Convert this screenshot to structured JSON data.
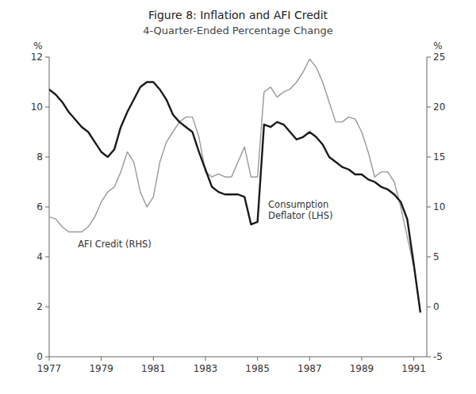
{
  "chart_data": {
    "type": "line",
    "title": "Figure 8: Inflation and AFI Credit",
    "subtitle": "4-Quarter-Ended Percentage Change",
    "ylabel": "%",
    "y2label": "%",
    "annotations": [
      "AFI Credit (RHS)",
      "Consumption\nDeflator (LHS)"
    ],
    "grid": false,
    "xlim": [
      1977.0,
      1991.5
    ],
    "xticks": [
      1977,
      1979,
      1981,
      1983,
      1985,
      1987,
      1989,
      1991
    ],
    "ylim": [
      0,
      12
    ],
    "yticks": [
      0,
      2,
      4,
      6,
      8,
      10,
      12
    ],
    "y2lim": [
      -5,
      25
    ],
    "y2ticks": [
      -5,
      0,
      5,
      10,
      15,
      20,
      25
    ],
    "x": [
      1977.0,
      1977.25,
      1977.5,
      1977.75,
      1978.0,
      1978.25,
      1978.5,
      1978.75,
      1979.0,
      1979.25,
      1979.5,
      1979.75,
      1980.0,
      1980.25,
      1980.5,
      1980.75,
      1981.0,
      1981.25,
      1981.5,
      1981.75,
      1982.0,
      1982.25,
      1982.5,
      1982.75,
      1983.0,
      1983.25,
      1983.5,
      1983.75,
      1984.0,
      1984.25,
      1984.5,
      1984.75,
      1985.0,
      1985.25,
      1985.5,
      1985.75,
      1986.0,
      1986.25,
      1986.5,
      1986.75,
      1987.0,
      1987.25,
      1987.5,
      1987.75,
      1988.0,
      1988.25,
      1988.5,
      1988.75,
      1989.0,
      1989.25,
      1989.5,
      1989.75,
      1990.0,
      1990.25,
      1990.5,
      1990.75,
      1991.0,
      1991.25
    ],
    "series": [
      {
        "color": "#1a1a1a",
        "values": [
          10.7,
          10.5,
          10.2,
          9.8,
          9.5,
          9.2,
          9.0,
          8.6,
          8.2,
          8.0,
          8.3,
          9.2,
          9.8,
          10.3,
          10.8,
          11.0,
          11.0,
          10.7,
          10.3,
          9.7,
          9.4,
          9.2,
          9.0,
          8.2,
          7.5,
          6.8,
          6.6,
          6.5,
          6.5,
          6.5,
          6.4,
          5.3,
          5.4,
          9.3,
          9.2,
          9.4,
          9.3,
          9.0,
          8.7,
          8.8,
          9.0,
          8.8,
          8.5,
          8.0,
          7.8,
          7.6,
          7.5,
          7.3,
          7.3,
          7.1,
          7.0,
          6.8,
          6.7,
          6.5,
          6.2,
          5.5,
          3.7,
          1.8
        ]
      },
      {
        "color": "#999999",
        "axis": "y2",
        "values": [
          9.0,
          8.8,
          8.0,
          7.5,
          7.5,
          7.5,
          8.0,
          9.0,
          10.5,
          11.5,
          12.0,
          13.5,
          15.5,
          14.5,
          11.5,
          10.0,
          11.0,
          14.5,
          16.5,
          17.5,
          18.5,
          19.0,
          19.0,
          17.0,
          13.5,
          13.0,
          13.3,
          13.0,
          13.0,
          14.5,
          16.0,
          13.0,
          13.0,
          21.5,
          22.0,
          21.0,
          21.5,
          21.8,
          22.5,
          23.5,
          24.8,
          24.0,
          22.5,
          20.5,
          18.5,
          18.5,
          19.0,
          18.8,
          17.5,
          15.5,
          13.0,
          13.5,
          13.5,
          12.5,
          10.0,
          7.0,
          4.0,
          -0.5
        ]
      }
    ]
  }
}
